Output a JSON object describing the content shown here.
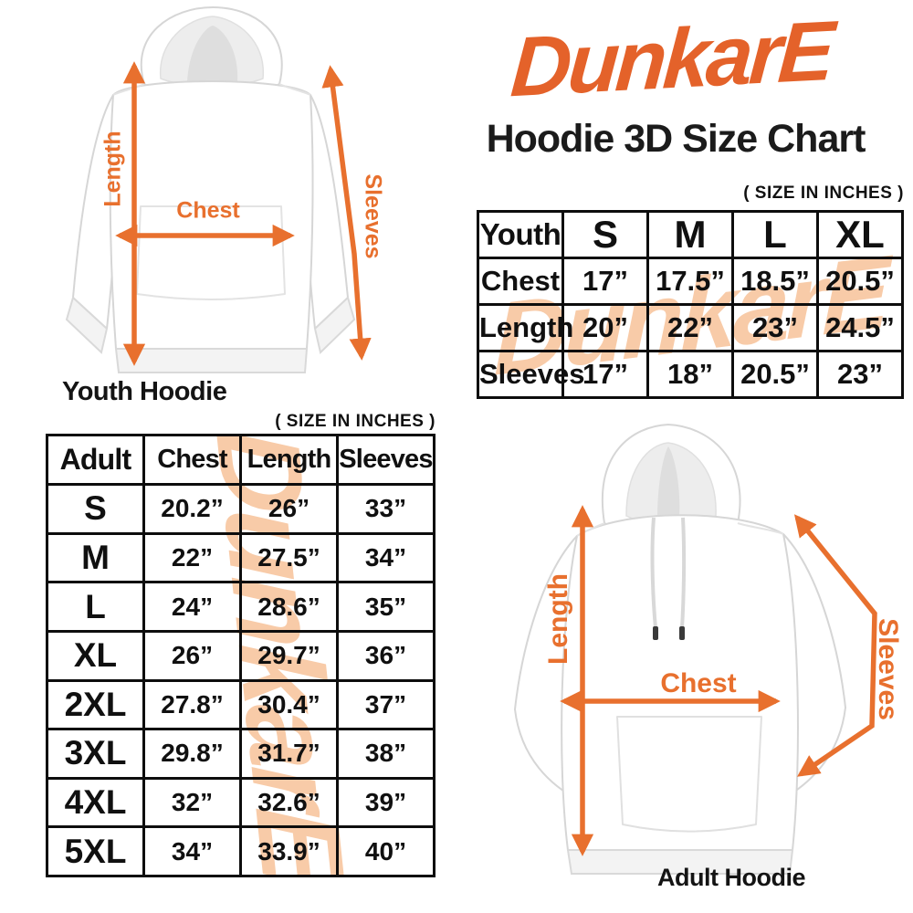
{
  "colors": {
    "logo_orange": "#E4622A",
    "arrow_orange": "#E8702E",
    "watermark_peach": "#F8CBA8",
    "table_border": "#0D0D0D",
    "text_black": "#141414"
  },
  "brand": {
    "logo_text": "DunkarE"
  },
  "header": {
    "title": "Hoodie 3D Size Chart"
  },
  "youth_section": {
    "size_note": "( SIZE IN INCHES )",
    "diagram": {
      "caption": "Youth Hoodie",
      "length_label": "Length",
      "chest_label": "Chest",
      "sleeves_label": "Sleeves"
    },
    "table": {
      "columns": [
        "Youth",
        "S",
        "M",
        "L",
        "XL"
      ],
      "rows": [
        [
          "Chest",
          "17”",
          "17.5”",
          "18.5”",
          "20.5”"
        ],
        [
          "Length",
          "20”",
          "22”",
          "23”",
          "24.5”"
        ],
        [
          "Sleeves",
          "17”",
          "18”",
          "20.5”",
          "23”"
        ]
      ]
    }
  },
  "adult_section": {
    "size_note": "( SIZE IN INCHES )",
    "diagram": {
      "caption": "Adult Hoodie",
      "length_label": "Length",
      "chest_label": "Chest",
      "sleeves_label": "Sleeves"
    },
    "table": {
      "columns": [
        "Adult",
        "Chest",
        "Length",
        "Sleeves"
      ],
      "rows": [
        [
          "S",
          "20.2”",
          "26”",
          "33”"
        ],
        [
          "M",
          "22”",
          "27.5”",
          "34”"
        ],
        [
          "L",
          "24”",
          "28.6”",
          "35”"
        ],
        [
          "XL",
          "26”",
          "29.7”",
          "36”"
        ],
        [
          "2XL",
          "27.8”",
          "30.4”",
          "37”"
        ],
        [
          "3XL",
          "29.8”",
          "31.7”",
          "38”"
        ],
        [
          "4XL",
          "32”",
          "32.6”",
          "39”"
        ],
        [
          "5XL",
          "34”",
          "33.9”",
          "40”"
        ]
      ]
    }
  },
  "chart_data": [
    {
      "type": "table",
      "title": "Youth Hoodie Size Chart (inches)",
      "columns": [
        "Youth",
        "S",
        "M",
        "L",
        "XL"
      ],
      "rows": [
        [
          "Chest",
          17,
          17.5,
          18.5,
          20.5
        ],
        [
          "Length",
          20,
          22,
          23,
          24.5
        ],
        [
          "Sleeves",
          17,
          18,
          20.5,
          23
        ]
      ]
    },
    {
      "type": "table",
      "title": "Adult Hoodie Size Chart (inches)",
      "columns": [
        "Adult",
        "Chest",
        "Length",
        "Sleeves"
      ],
      "rows": [
        [
          "S",
          20.2,
          26,
          33
        ],
        [
          "M",
          22,
          27.5,
          34
        ],
        [
          "L",
          24,
          28.6,
          35
        ],
        [
          "XL",
          26,
          29.7,
          36
        ],
        [
          "2XL",
          27.8,
          30.4,
          37
        ],
        [
          "3XL",
          29.8,
          31.7,
          38
        ],
        [
          "4XL",
          32,
          32.6,
          39
        ],
        [
          "5XL",
          34,
          33.9,
          40
        ]
      ]
    }
  ]
}
